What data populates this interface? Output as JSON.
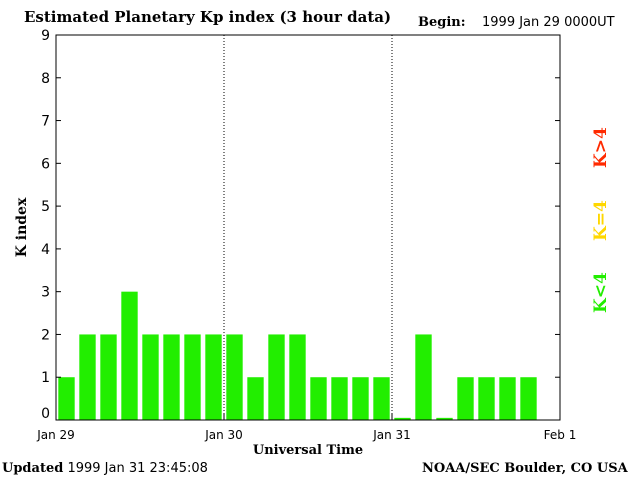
{
  "header": {
    "title": "Estimated Planetary Kp index (3 hour data)",
    "begin_label": "Begin:",
    "begin_value": "1999 Jan 29 0000UT"
  },
  "footer": {
    "updated_label": "Updated",
    "updated_value": "1999 Jan 31 23:45:08",
    "credit": "NOAA/SEC Boulder, CO USA"
  },
  "legend": {
    "high": {
      "label": "K>4",
      "color": "#ff2a00"
    },
    "equal": {
      "label": "K=4",
      "color": "#ffd700"
    },
    "low": {
      "label": "K<4",
      "color": "#22ee00"
    }
  },
  "chart_data": {
    "type": "bar",
    "title": "Estimated Planetary Kp index (3 hour data)",
    "xlabel": "Universal Time",
    "ylabel": "K index",
    "ylim": [
      0,
      9
    ],
    "yticks": [
      0,
      1,
      2,
      3,
      4,
      5,
      6,
      7,
      8,
      9
    ],
    "xlim": [
      "1999-01-29T00:00",
      "1999-02-01T00:00"
    ],
    "xticks": [
      {
        "at": "1999-01-29T00:00",
        "label": "Jan 29"
      },
      {
        "at": "1999-01-30T00:00",
        "label": "Jan 30"
      },
      {
        "at": "1999-01-31T00:00",
        "label": "Jan 31"
      },
      {
        "at": "1999-02-01T00:00",
        "label": "Feb 1"
      }
    ],
    "day_separators": [
      "1999-01-30T00:00",
      "1999-01-31T00:00"
    ],
    "interval_hours": 3,
    "start": "1999-01-29T00:00",
    "values": [
      1,
      2,
      2,
      3,
      2,
      2,
      2,
      2,
      2,
      1,
      2,
      2,
      1,
      1,
      1,
      1,
      0.05,
      2,
      0.05,
      1,
      1,
      1,
      1
    ],
    "bar_color": "#22ee00"
  }
}
